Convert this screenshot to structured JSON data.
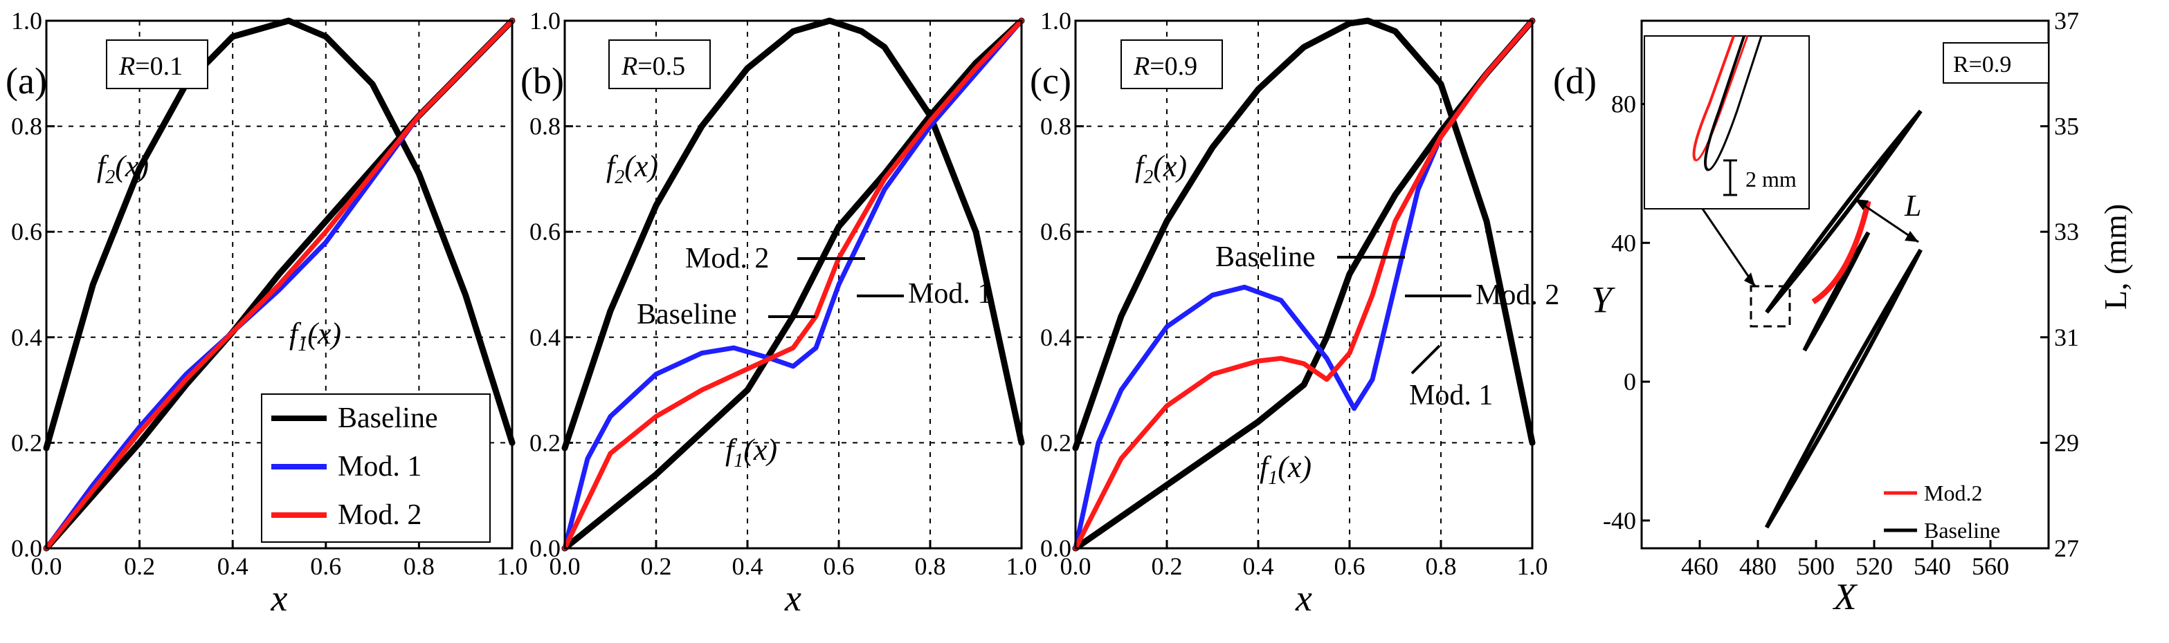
{
  "figure": {
    "colors": {
      "baseline": "#000000",
      "mod1": "#1f1fff",
      "mod2": "#ff1a1a"
    },
    "panels": [
      {
        "label": "(a)",
        "r_label": "R",
        "r_value": "=0.1",
        "f2_label": "f",
        "f2_sub": "2",
        "f2_arg": "(x)",
        "f1_label": "f",
        "f1_sub": "1",
        "f1_arg": "(x)",
        "legend": [
          "Baseline",
          "Mod. 1",
          "Mod. 2"
        ]
      },
      {
        "label": "(b)",
        "r_label": "R",
        "r_value": "=0.5",
        "f2_label": "f",
        "f2_sub": "2",
        "f2_arg": "(x)",
        "f1_label": "f",
        "f1_sub": "1",
        "f1_arg": "(x)",
        "callouts": [
          "Mod. 2",
          "Baseline",
          "Mod. 1"
        ]
      },
      {
        "label": "(c)",
        "r_label": "R",
        "r_value": "=0.9",
        "f2_label": "f",
        "f2_sub": "2",
        "f2_arg": "(x)",
        "f1_label": "f",
        "f1_sub": "1",
        "f1_arg": "(x)",
        "callouts": [
          "Baseline",
          "Mod. 2",
          "Mod. 1"
        ]
      },
      {
        "label": "(d)",
        "r_box": "R=0.9",
        "scale_label": "2 mm",
        "l_label": "L",
        "legend": [
          "Mod.2",
          "Baseline"
        ]
      }
    ]
  },
  "chart_data": [
    {
      "type": "line",
      "panel": "a",
      "xlabel": "x",
      "ylabel": "",
      "xlim": [
        0,
        1
      ],
      "ylim": [
        0,
        1
      ],
      "xticks": [
        "0.0",
        "0.2",
        "0.4",
        "0.6",
        "0.8",
        "1.0"
      ],
      "yticks": [
        "0.0",
        "0.2",
        "0.4",
        "0.6",
        "0.8",
        "1.0"
      ],
      "annotation": "R=0.1",
      "series": [
        {
          "name": "f2(x)",
          "color": "#000000",
          "x": [
            0,
            0.1,
            0.2,
            0.3,
            0.4,
            0.52,
            0.6,
            0.7,
            0.8,
            0.9,
            1.0
          ],
          "y": [
            0.19,
            0.5,
            0.72,
            0.88,
            0.97,
            1.0,
            0.97,
            0.88,
            0.71,
            0.48,
            0.2
          ]
        },
        {
          "name": "Baseline",
          "color": "#000000",
          "x": [
            0,
            0.1,
            0.2,
            0.3,
            0.4,
            0.5,
            0.6,
            0.7,
            0.8,
            0.9,
            1.0
          ],
          "y": [
            0,
            0.1,
            0.2,
            0.31,
            0.41,
            0.52,
            0.62,
            0.72,
            0.82,
            0.91,
            1.0
          ]
        },
        {
          "name": "Mod. 1",
          "color": "#1f1fff",
          "x": [
            0,
            0.1,
            0.2,
            0.3,
            0.4,
            0.5,
            0.6,
            0.7,
            0.8,
            0.9,
            1.0
          ],
          "y": [
            0,
            0.12,
            0.23,
            0.33,
            0.41,
            0.49,
            0.58,
            0.7,
            0.82,
            0.91,
            1.0
          ]
        },
        {
          "name": "Mod. 2",
          "color": "#ff1a1a",
          "x": [
            0,
            0.1,
            0.2,
            0.3,
            0.4,
            0.5,
            0.6,
            0.7,
            0.8,
            0.9,
            1.0
          ],
          "y": [
            0,
            0.11,
            0.22,
            0.32,
            0.41,
            0.5,
            0.6,
            0.71,
            0.82,
            0.91,
            1.0
          ]
        }
      ]
    },
    {
      "type": "line",
      "panel": "b",
      "xlabel": "x",
      "ylabel": "",
      "xlim": [
        0,
        1
      ],
      "ylim": [
        0,
        1
      ],
      "xticks": [
        "0.0",
        "0.2",
        "0.4",
        "0.6",
        "0.8",
        "1.0"
      ],
      "yticks": [
        "0.0",
        "0.2",
        "0.4",
        "0.6",
        "0.8",
        "1.0"
      ],
      "annotation": "R=0.5",
      "series": [
        {
          "name": "f2(x)",
          "color": "#000000",
          "x": [
            0,
            0.1,
            0.2,
            0.3,
            0.4,
            0.5,
            0.58,
            0.65,
            0.7,
            0.8,
            0.9,
            1.0
          ],
          "y": [
            0.19,
            0.45,
            0.65,
            0.8,
            0.91,
            0.98,
            1.0,
            0.98,
            0.95,
            0.82,
            0.6,
            0.2
          ]
        },
        {
          "name": "Baseline",
          "color": "#000000",
          "x": [
            0,
            0.1,
            0.2,
            0.3,
            0.4,
            0.5,
            0.6,
            0.7,
            0.8,
            0.9,
            1.0
          ],
          "y": [
            0,
            0.07,
            0.14,
            0.22,
            0.3,
            0.44,
            0.61,
            0.71,
            0.82,
            0.92,
            1.0
          ]
        },
        {
          "name": "Mod. 1",
          "color": "#1f1fff",
          "x": [
            0,
            0.05,
            0.1,
            0.2,
            0.3,
            0.37,
            0.45,
            0.5,
            0.55,
            0.6,
            0.7,
            0.8,
            0.9,
            1.0
          ],
          "y": [
            0,
            0.17,
            0.25,
            0.33,
            0.37,
            0.38,
            0.36,
            0.345,
            0.38,
            0.5,
            0.68,
            0.8,
            0.9,
            1.0
          ]
        },
        {
          "name": "Mod. 2",
          "color": "#ff1a1a",
          "x": [
            0,
            0.1,
            0.2,
            0.3,
            0.4,
            0.5,
            0.55,
            0.6,
            0.7,
            0.8,
            0.9,
            1.0
          ],
          "y": [
            0,
            0.18,
            0.25,
            0.3,
            0.34,
            0.38,
            0.44,
            0.55,
            0.7,
            0.81,
            0.91,
            1.0
          ]
        }
      ]
    },
    {
      "type": "line",
      "panel": "c",
      "xlabel": "x",
      "ylabel": "",
      "xlim": [
        0,
        1
      ],
      "ylim": [
        0,
        1
      ],
      "xticks": [
        "0.0",
        "0.2",
        "0.4",
        "0.6",
        "0.8",
        "1.0"
      ],
      "yticks": [
        "0.0",
        "0.2",
        "0.4",
        "0.6",
        "0.8",
        "1.0"
      ],
      "annotation": "R=0.9",
      "series": [
        {
          "name": "f2(x)",
          "color": "#000000",
          "x": [
            0,
            0.1,
            0.2,
            0.3,
            0.4,
            0.5,
            0.6,
            0.64,
            0.7,
            0.8,
            0.9,
            1.0
          ],
          "y": [
            0.19,
            0.44,
            0.62,
            0.76,
            0.87,
            0.95,
            0.995,
            1.0,
            0.98,
            0.88,
            0.62,
            0.2
          ]
        },
        {
          "name": "Baseline",
          "color": "#000000",
          "x": [
            0,
            0.1,
            0.2,
            0.3,
            0.4,
            0.5,
            0.55,
            0.6,
            0.7,
            0.8,
            0.9,
            1.0
          ],
          "y": [
            0,
            0.06,
            0.12,
            0.18,
            0.24,
            0.31,
            0.4,
            0.52,
            0.67,
            0.79,
            0.9,
            1.0
          ]
        },
        {
          "name": "Mod. 1",
          "color": "#1f1fff",
          "x": [
            0,
            0.05,
            0.1,
            0.2,
            0.3,
            0.37,
            0.45,
            0.55,
            0.61,
            0.65,
            0.7,
            0.75,
            0.8,
            0.9,
            1.0
          ],
          "y": [
            0,
            0.2,
            0.3,
            0.42,
            0.48,
            0.495,
            0.47,
            0.36,
            0.265,
            0.32,
            0.5,
            0.68,
            0.78,
            0.9,
            1.0
          ]
        },
        {
          "name": "Mod. 2",
          "color": "#ff1a1a",
          "x": [
            0,
            0.1,
            0.2,
            0.3,
            0.4,
            0.45,
            0.5,
            0.55,
            0.6,
            0.65,
            0.7,
            0.8,
            0.9,
            1.0
          ],
          "y": [
            0,
            0.17,
            0.27,
            0.33,
            0.355,
            0.36,
            0.35,
            0.32,
            0.37,
            0.48,
            0.62,
            0.78,
            0.9,
            1.0
          ]
        }
      ]
    },
    {
      "type": "scatter",
      "panel": "d",
      "xlabel": "X",
      "ylabel": "Y",
      "y2label": "L, (mm)",
      "xlim": [
        440,
        580
      ],
      "ylim": [
        -48,
        104
      ],
      "y2lim": [
        27,
        37
      ],
      "xticks": [
        "460",
        "480",
        "500",
        "520",
        "540",
        "560"
      ],
      "yticks": [
        "-40",
        "0",
        "40",
        "80"
      ],
      "y2ticks": [
        "27",
        "29",
        "31",
        "33",
        "35",
        "37"
      ],
      "annotation": "R=0.9",
      "series": [
        {
          "name": "Baseline",
          "color": "#000000",
          "x": [
            483,
            536
          ],
          "y": [
            20,
            78
          ]
        },
        {
          "name": "Baseline",
          "color": "#000000",
          "x": [
            483,
            536
          ],
          "y": [
            -42,
            38
          ]
        },
        {
          "name": "Baseline",
          "color": "#000000",
          "x": [
            496,
            518
          ],
          "y": [
            9,
            43
          ]
        },
        {
          "name": "Mod.2",
          "color": "#ff1a1a",
          "x": [
            499,
            518
          ],
          "y": [
            23,
            52
          ]
        }
      ]
    }
  ]
}
